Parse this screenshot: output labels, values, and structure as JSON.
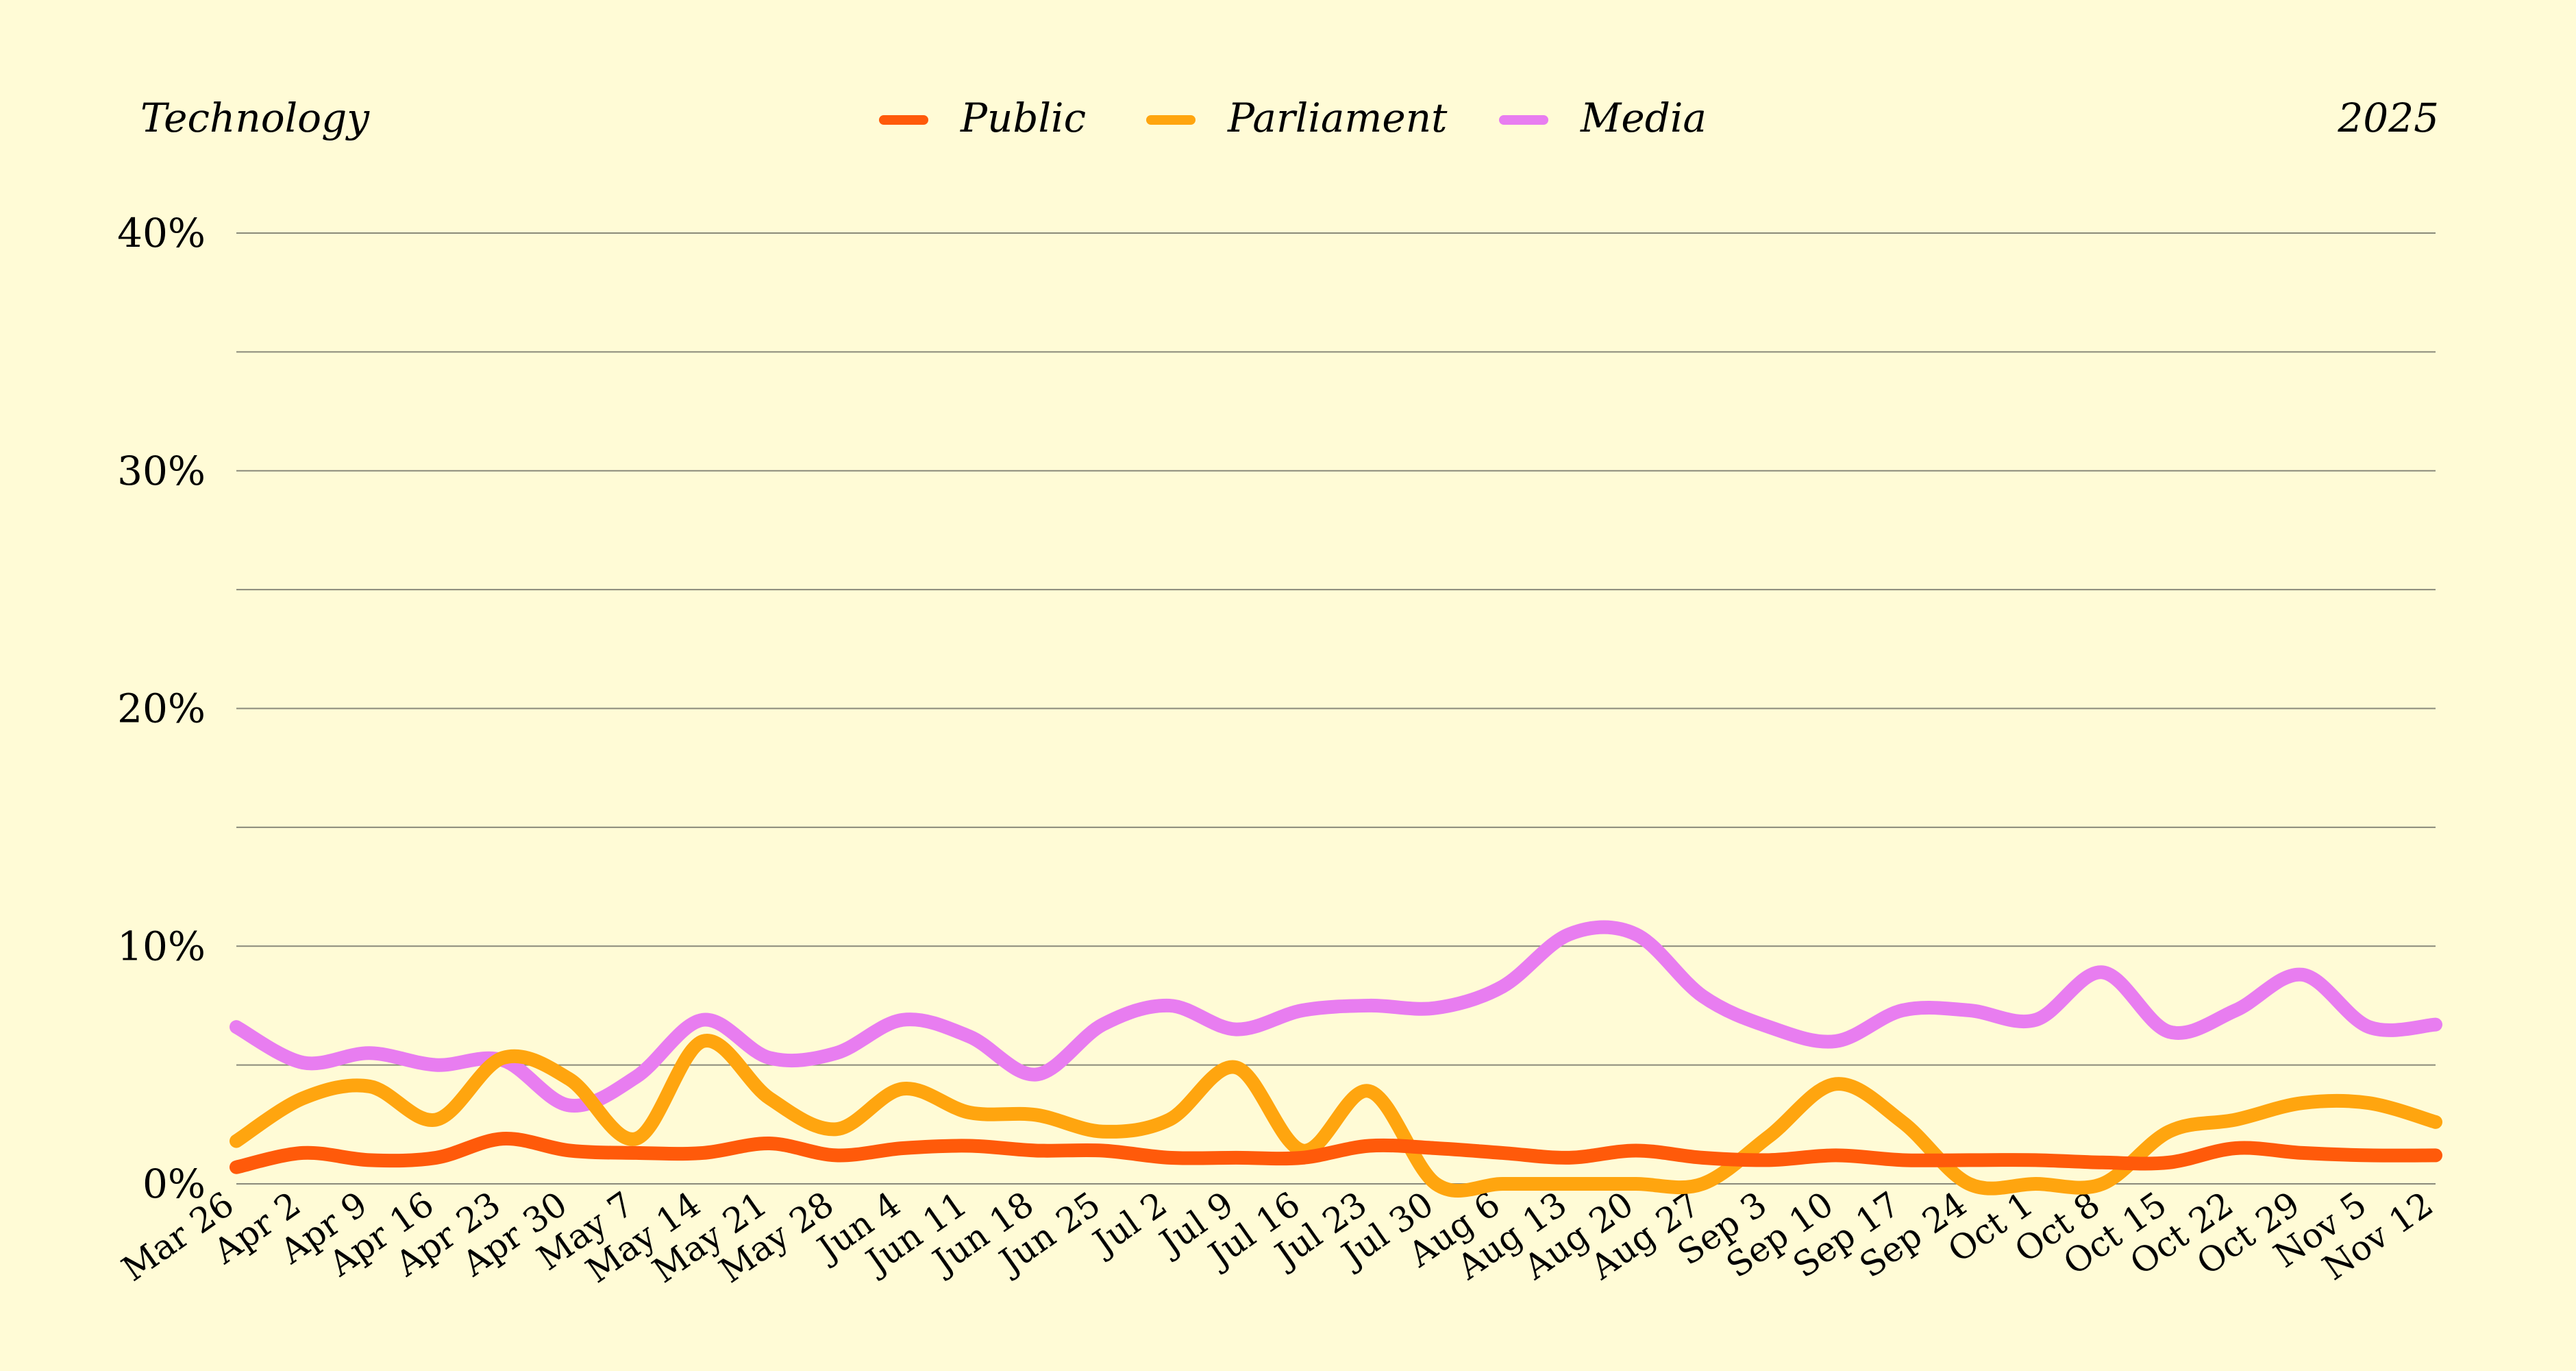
{
  "header": {
    "category": "Technology",
    "year": "2025"
  },
  "chart_data": {
    "type": "line",
    "ylim": [
      0,
      40
    ],
    "y_ticks": [
      "0%",
      "10%",
      "20%",
      "30%",
      "40%"
    ],
    "grid": true,
    "legend_position": "top-center",
    "x": [
      "Mar 26",
      "Apr 2",
      "Apr 9",
      "Apr 16",
      "Apr 23",
      "Apr 30",
      "May 7",
      "May 14",
      "May 21",
      "May 28",
      "Jun 4",
      "Jun 11",
      "Jun 18",
      "Jun 25",
      "Jul 2",
      "Jul 9",
      "Jul 16",
      "Jul 23",
      "Jul 30",
      "Aug 6",
      "Aug 13",
      "Aug 20",
      "Aug 27",
      "Sep 3",
      "Sep 10",
      "Sep 17",
      "Sep 24",
      "Oct 1",
      "Oct 8",
      "Oct 15",
      "Oct 22",
      "Oct 29",
      "Nov 5",
      "Nov 12"
    ],
    "series": [
      {
        "name": "Public",
        "color": "#ff5a0a",
        "values": [
          0.7,
          1.3,
          1.0,
          1.1,
          1.9,
          1.4,
          1.3,
          1.3,
          1.7,
          1.2,
          1.5,
          1.6,
          1.4,
          1.4,
          1.1,
          1.1,
          1.1,
          1.6,
          1.5,
          1.3,
          1.1,
          1.4,
          1.1,
          1.0,
          1.2,
          1.0,
          1.0,
          1.0,
          0.9,
          0.9,
          1.5,
          1.3,
          1.2,
          1.2
        ]
      },
      {
        "name": "Parliament",
        "color": "#ffa50f",
        "values": [
          1.8,
          3.6,
          4.1,
          2.7,
          5.3,
          4.4,
          1.9,
          6.0,
          3.6,
          2.3,
          4.0,
          3.0,
          2.9,
          2.2,
          2.7,
          4.9,
          1.4,
          3.9,
          0.0,
          0.0,
          0.0,
          0.0,
          0.0,
          2.0,
          4.2,
          2.6,
          0.0,
          0.0,
          0.0,
          2.2,
          2.7,
          3.4,
          3.4,
          2.6
        ]
      },
      {
        "name": "Media",
        "color": "#e87df0",
        "values": [
          6.6,
          5.1,
          5.5,
          5.0,
          5.2,
          3.3,
          4.5,
          6.9,
          5.3,
          5.5,
          6.9,
          6.2,
          4.6,
          6.7,
          7.5,
          6.5,
          7.3,
          7.5,
          7.4,
          8.3,
          10.5,
          10.5,
          7.9,
          6.6,
          6.0,
          7.3,
          7.3,
          6.9,
          8.9,
          6.4,
          7.3,
          8.8,
          6.6,
          6.7
        ]
      }
    ]
  }
}
